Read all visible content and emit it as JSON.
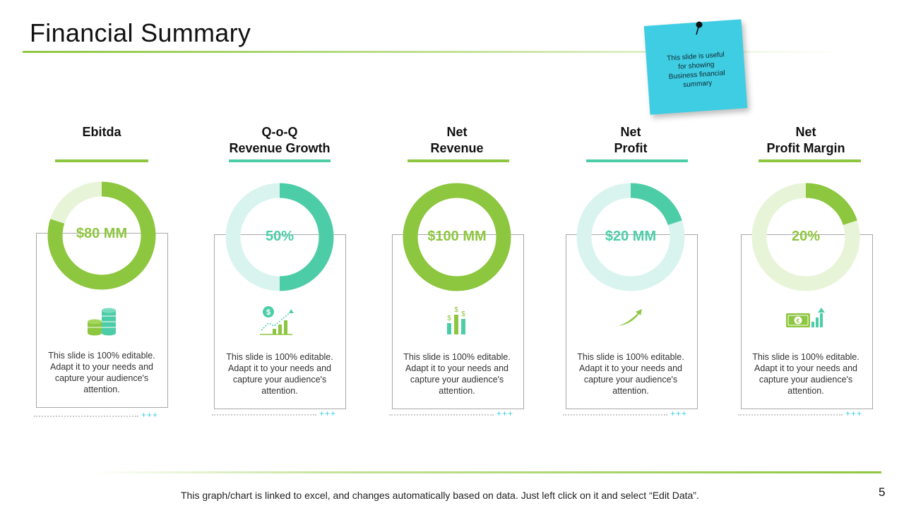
{
  "slide": {
    "title": "Financial Summary",
    "note": "This slide is useful for showing Business financial summary",
    "footer": "This graph/chart is linked to excel, and changes automatically based on data. Just left click on it and select “Edit Data”.",
    "page_number": "5"
  },
  "colors": {
    "green": "#8dc63f",
    "green_light": "#e8f4d8",
    "teal": "#4dcda7",
    "teal_light": "#d9f4ee",
    "sticky": "#3fcde3"
  },
  "metrics": [
    {
      "title_line1": "Ebitda",
      "title_line2": "",
      "value": "$80 MM",
      "fraction": 0.8,
      "color": "green",
      "icon": "coins-icon",
      "description": "This slide is 100% editable. Adapt it to your needs and capture your audience's attention.",
      "plus": "+++"
    },
    {
      "title_line1": "Q-o-Q",
      "title_line2": "Revenue Growth",
      "value": "50%",
      "fraction": 0.5,
      "color": "teal",
      "icon": "growth-chart-icon",
      "description": "This slide is 100% editable. Adapt it to your needs and capture your audience's attention.",
      "plus": "+++"
    },
    {
      "title_line1": "Net",
      "title_line2": "Revenue",
      "value": "$100 MM",
      "fraction": 1.0,
      "color": "green",
      "icon": "dollar-bars-icon",
      "description": "This slide is 100% editable. Adapt it to your needs and capture your audience's attention.",
      "plus": "+++"
    },
    {
      "title_line1": "Net",
      "title_line2": "Profit",
      "value": "$20 MM",
      "fraction": 0.2,
      "color": "teal",
      "icon": "rising-arrow-icon",
      "description": "This slide is 100% editable. Adapt it to your needs and capture your audience's attention.",
      "plus": "+++"
    },
    {
      "title_line1": "Net",
      "title_line2": "Profit Margin",
      "value": "20%",
      "fraction": 0.2,
      "color": "green",
      "icon": "cash-chart-icon",
      "description": "This slide is 100% editable. Adapt it to your needs and capture your audience's attention.",
      "plus": "+++"
    }
  ]
}
